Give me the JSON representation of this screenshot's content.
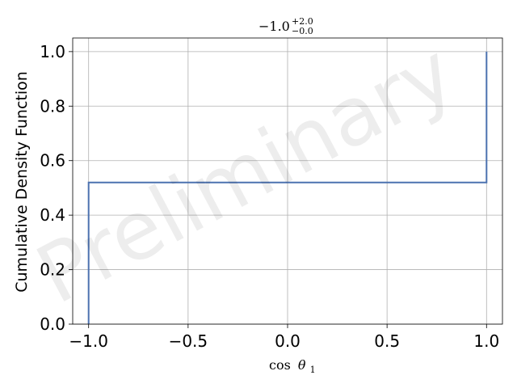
{
  "chart_data": {
    "type": "line",
    "title": {
      "base": "−1.0",
      "sup": "+2.0",
      "sub": "−0.0"
    },
    "xlabel": {
      "func": "cos",
      "var": "θ",
      "index": "1"
    },
    "ylabel": "Cumulative Density Function",
    "xlim": [
      -1.08,
      1.08
    ],
    "ylim": [
      0.0,
      1.05
    ],
    "xticks": [
      -1.0,
      -0.5,
      0.0,
      0.5,
      1.0
    ],
    "xtick_labels": [
      "−1.0",
      "−0.5",
      "0.0",
      "0.5",
      "1.0"
    ],
    "yticks": [
      0.0,
      0.2,
      0.4,
      0.6,
      0.8,
      1.0
    ],
    "ytick_labels": [
      "0.0",
      "0.2",
      "0.4",
      "0.6",
      "0.8",
      "1.0"
    ],
    "grid": true,
    "series": [
      {
        "x": [
          -1.0,
          -1.0,
          1.0,
          1.0
        ],
        "y": [
          0.0,
          0.52,
          0.52,
          1.0
        ]
      }
    ],
    "series_color": "#4c72b0",
    "watermark": "Preliminary"
  }
}
